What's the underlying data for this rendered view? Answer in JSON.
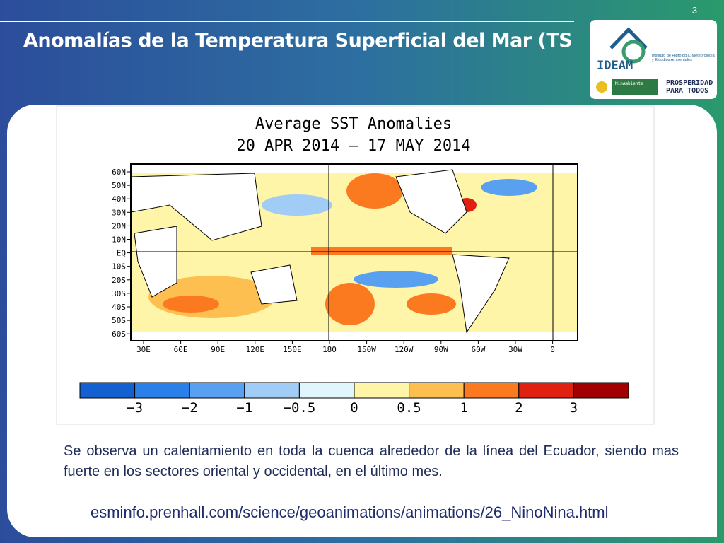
{
  "slide_number": "3",
  "header": {
    "title": "Anomalías de la Temperatura Superficial del Mar (TS"
  },
  "logo": {
    "name": "IDEAM",
    "institute": "Instituto de Hidrología, Meteorología y Estudios Ambientales",
    "ministry": "MinAmbiente",
    "slogan_1": "PROSPERIDAD",
    "slogan_2": "PARA TODOS"
  },
  "map": {
    "title": "Average SST Anomalies",
    "subtitle": "20 APR 2014 – 17 MAY 2014",
    "lat_labels": [
      "60N",
      "50N",
      "40N",
      "30N",
      "20N",
      "10N",
      "EQ",
      "10S",
      "20S",
      "30S",
      "40S",
      "50S",
      "60S"
    ],
    "lon_labels": [
      "30E",
      "60E",
      "90E",
      "120E",
      "150E",
      "180",
      "150W",
      "120W",
      "90W",
      "60W",
      "30W",
      "0"
    ],
    "colorbar": {
      "colors": [
        "#1560d0",
        "#2a80e8",
        "#5aa0f0",
        "#a0ccf5",
        "#e0f6fc",
        "#fff5a8",
        "#fdc050",
        "#fb7a20",
        "#e02010",
        "#a00000"
      ],
      "ticks": [
        {
          "value": -3,
          "label": "−3"
        },
        {
          "value": -2,
          "label": "−2"
        },
        {
          "value": -1,
          "label": "−1"
        },
        {
          "value": -0.5,
          "label": "−0.5"
        },
        0,
        0.5,
        1,
        2,
        3
      ]
    }
  },
  "body": {
    "paragraph": "Se observa un calentamiento en toda la cuenca alrededor de la línea del Ecuador, siendo mas fuerte en los sectores oriental y occidental, en el último mes.",
    "link": "esminfo.prenhall.com/science/geoanimations/animations/26_NinoNina.html"
  }
}
